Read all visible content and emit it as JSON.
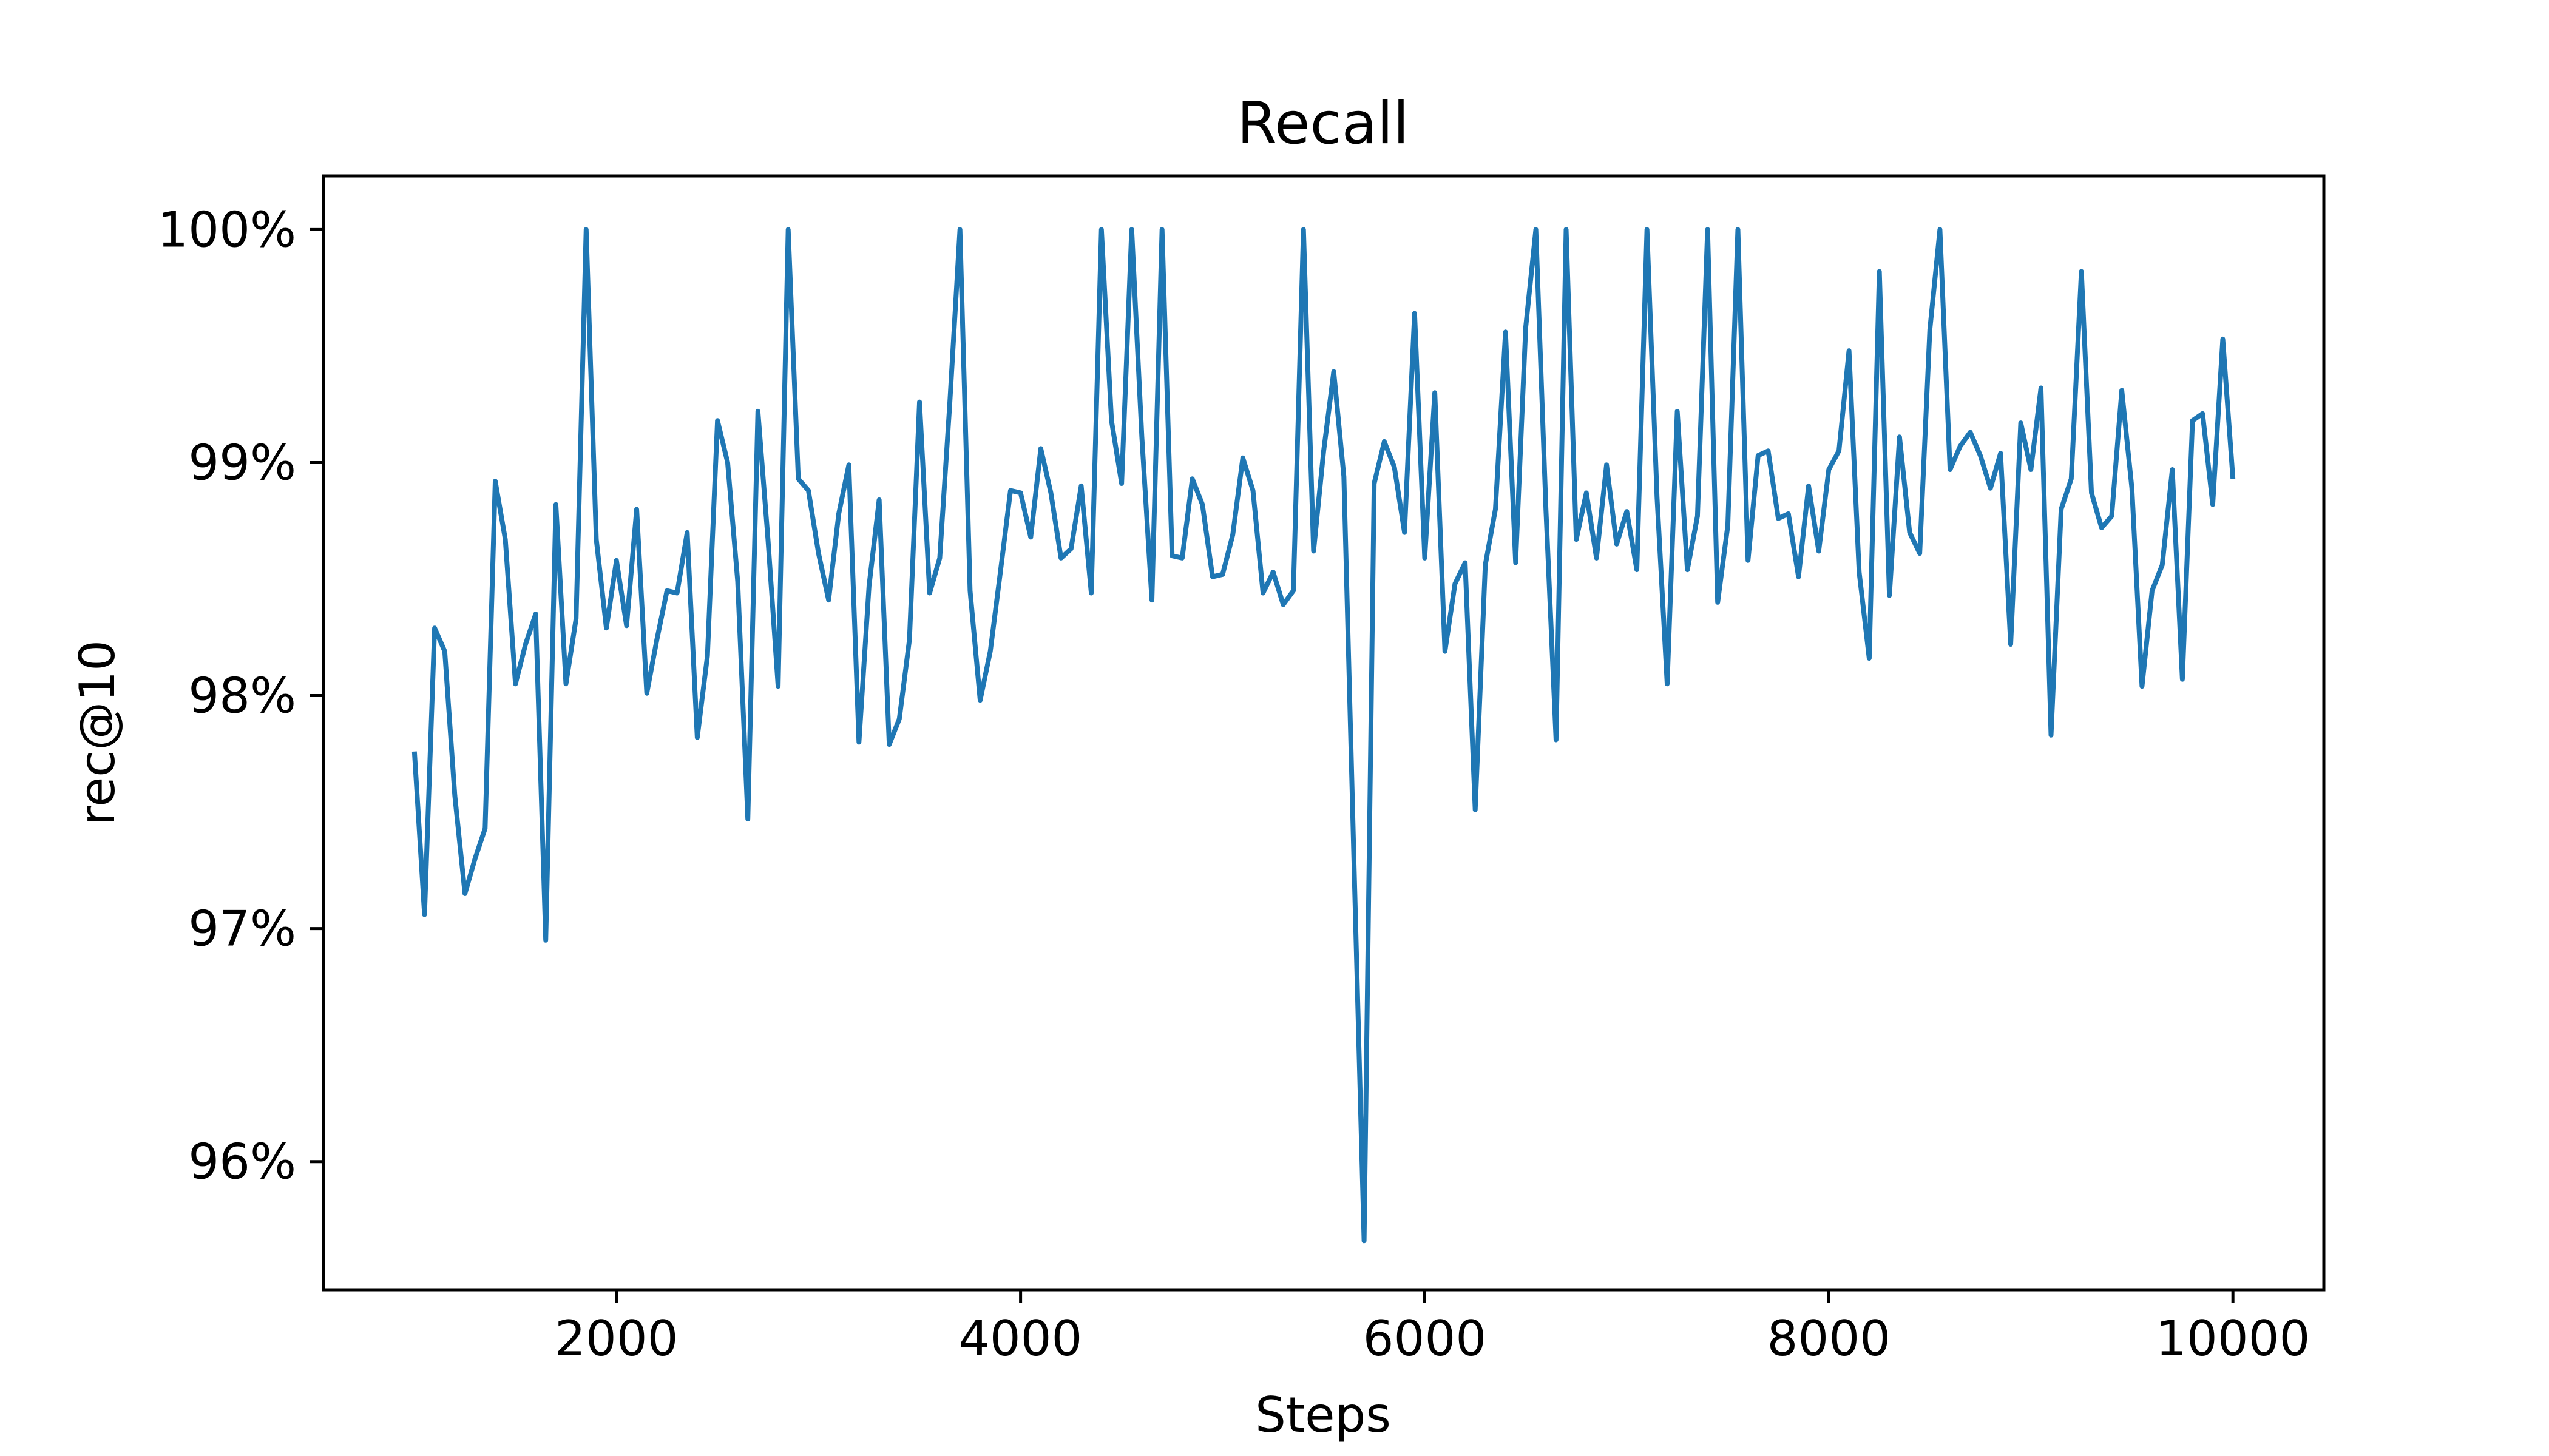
{
  "chart_data": {
    "type": "line",
    "title": "Recall",
    "xlabel": "Steps",
    "ylabel": "rec@10",
    "xlim": [
      550,
      10450
    ],
    "ylim": [
      95.45,
      100.23
    ],
    "grid": false,
    "legend": "none",
    "color": "#1f77b4",
    "x_ticks": [
      {
        "value": 2000,
        "label": "2000"
      },
      {
        "value": 4000,
        "label": "4000"
      },
      {
        "value": 6000,
        "label": "6000"
      },
      {
        "value": 8000,
        "label": "8000"
      },
      {
        "value": 10000,
        "label": "10000"
      }
    ],
    "y_ticks": [
      {
        "value": 96,
        "label": "96%"
      },
      {
        "value": 97,
        "label": "97%"
      },
      {
        "value": 98,
        "label": "98%"
      },
      {
        "value": 99,
        "label": "99%"
      },
      {
        "value": 100,
        "label": "100%"
      }
    ],
    "x": [
      1000,
      1050,
      1100,
      1150,
      1200,
      1250,
      1300,
      1350,
      1400,
      1450,
      1500,
      1550,
      1600,
      1650,
      1700,
      1750,
      1800,
      1850,
      1900,
      1950,
      2000,
      2050,
      2100,
      2150,
      2200,
      2250,
      2300,
      2350,
      2400,
      2450,
      2500,
      2550,
      2600,
      2650,
      2700,
      2750,
      2800,
      2850,
      2900,
      2950,
      3000,
      3050,
      3100,
      3150,
      3200,
      3250,
      3300,
      3350,
      3400,
      3450,
      3500,
      3550,
      3600,
      3650,
      3700,
      3750,
      3800,
      3850,
      3900,
      3950,
      4000,
      4050,
      4100,
      4150,
      4200,
      4250,
      4300,
      4350,
      4400,
      4450,
      4500,
      4550,
      4600,
      4650,
      4700,
      4750,
      4800,
      4850,
      4900,
      4950,
      5000,
      5050,
      5100,
      5150,
      5200,
      5250,
      5300,
      5350,
      5400,
      5450,
      5500,
      5550,
      5600,
      5650,
      5700,
      5750,
      5800,
      5850,
      5900,
      5950,
      6000,
      6050,
      6100,
      6150,
      6200,
      6250,
      6300,
      6350,
      6400,
      6450,
      6500,
      6550,
      6600,
      6650,
      6700,
      6750,
      6800,
      6850,
      6900,
      6950,
      7000,
      7050,
      7100,
      7150,
      7200,
      7250,
      7300,
      7350,
      7400,
      7450,
      7500,
      7550,
      7600,
      7650,
      7700,
      7750,
      7800,
      7850,
      7900,
      7950,
      8000,
      8050,
      8100,
      8150,
      8200,
      8250,
      8300,
      8350,
      8400,
      8450,
      8500,
      8550,
      8600,
      8650,
      8700,
      8750,
      8800,
      8850,
      8900,
      8950,
      9000,
      9050,
      9100,
      9150,
      9200,
      9250,
      9300,
      9350,
      9400,
      9450,
      9500,
      9550,
      9600,
      9650,
      9700,
      9750,
      9800,
      9850,
      9900,
      9950,
      10000
    ],
    "series": [
      {
        "values": [
          97.76,
          97.06,
          98.29,
          98.19,
          97.57,
          97.15,
          97.3,
          97.43,
          98.92,
          98.67,
          98.05,
          98.22,
          98.35,
          96.95,
          98.82,
          98.05,
          98.33,
          100.0,
          98.67,
          98.29,
          98.58,
          98.3,
          98.8,
          98.01,
          98.24,
          98.45,
          98.44,
          98.7,
          97.82,
          98.17,
          99.18,
          99.0,
          98.49,
          97.47,
          99.22,
          98.67,
          98.04,
          100.0,
          98.93,
          98.88,
          98.61,
          98.41,
          98.78,
          98.99,
          97.8,
          98.47,
          98.84,
          97.79,
          97.9,
          98.24,
          99.26,
          98.44,
          98.59,
          99.26,
          100.0,
          98.45,
          97.98,
          98.19,
          98.53,
          98.88,
          98.87,
          98.68,
          99.06,
          98.87,
          98.59,
          98.63,
          98.9,
          98.44,
          100.0,
          99.18,
          98.91,
          100.0,
          99.11,
          98.41,
          100.0,
          98.6,
          98.59,
          98.93,
          98.82,
          98.51,
          98.52,
          98.69,
          99.02,
          98.88,
          98.44,
          98.53,
          98.39,
          98.45,
          100.0,
          98.62,
          99.05,
          99.39,
          98.94,
          97.29,
          95.66,
          98.91,
          99.09,
          98.98,
          98.7,
          99.64,
          98.59,
          99.3,
          98.19,
          98.48,
          98.57,
          97.51,
          98.56,
          98.8,
          99.56,
          98.57,
          99.58,
          100.0,
          98.8,
          97.81,
          100.0,
          98.67,
          98.87,
          98.59,
          98.99,
          98.65,
          98.79,
          98.54,
          100.0,
          98.85,
          98.05,
          99.22,
          98.54,
          98.77,
          100.0,
          98.4,
          98.73,
          100.0,
          98.58,
          99.03,
          99.05,
          98.76,
          98.78,
          98.51,
          98.9,
          98.62,
          98.97,
          99.05,
          99.48,
          98.53,
          98.16,
          99.82,
          98.43,
          99.11,
          98.7,
          98.61,
          99.57,
          100.0,
          98.97,
          99.07,
          99.13,
          99.03,
          98.89,
          99.04,
          98.22,
          99.17,
          98.97,
          99.32,
          97.83,
          98.8,
          98.93,
          99.82,
          98.87,
          98.72,
          98.77,
          99.31,
          98.89,
          98.04,
          98.45,
          98.56,
          98.97,
          98.07,
          99.18,
          99.21,
          98.82,
          99.53,
          98.93
        ]
      }
    ]
  }
}
